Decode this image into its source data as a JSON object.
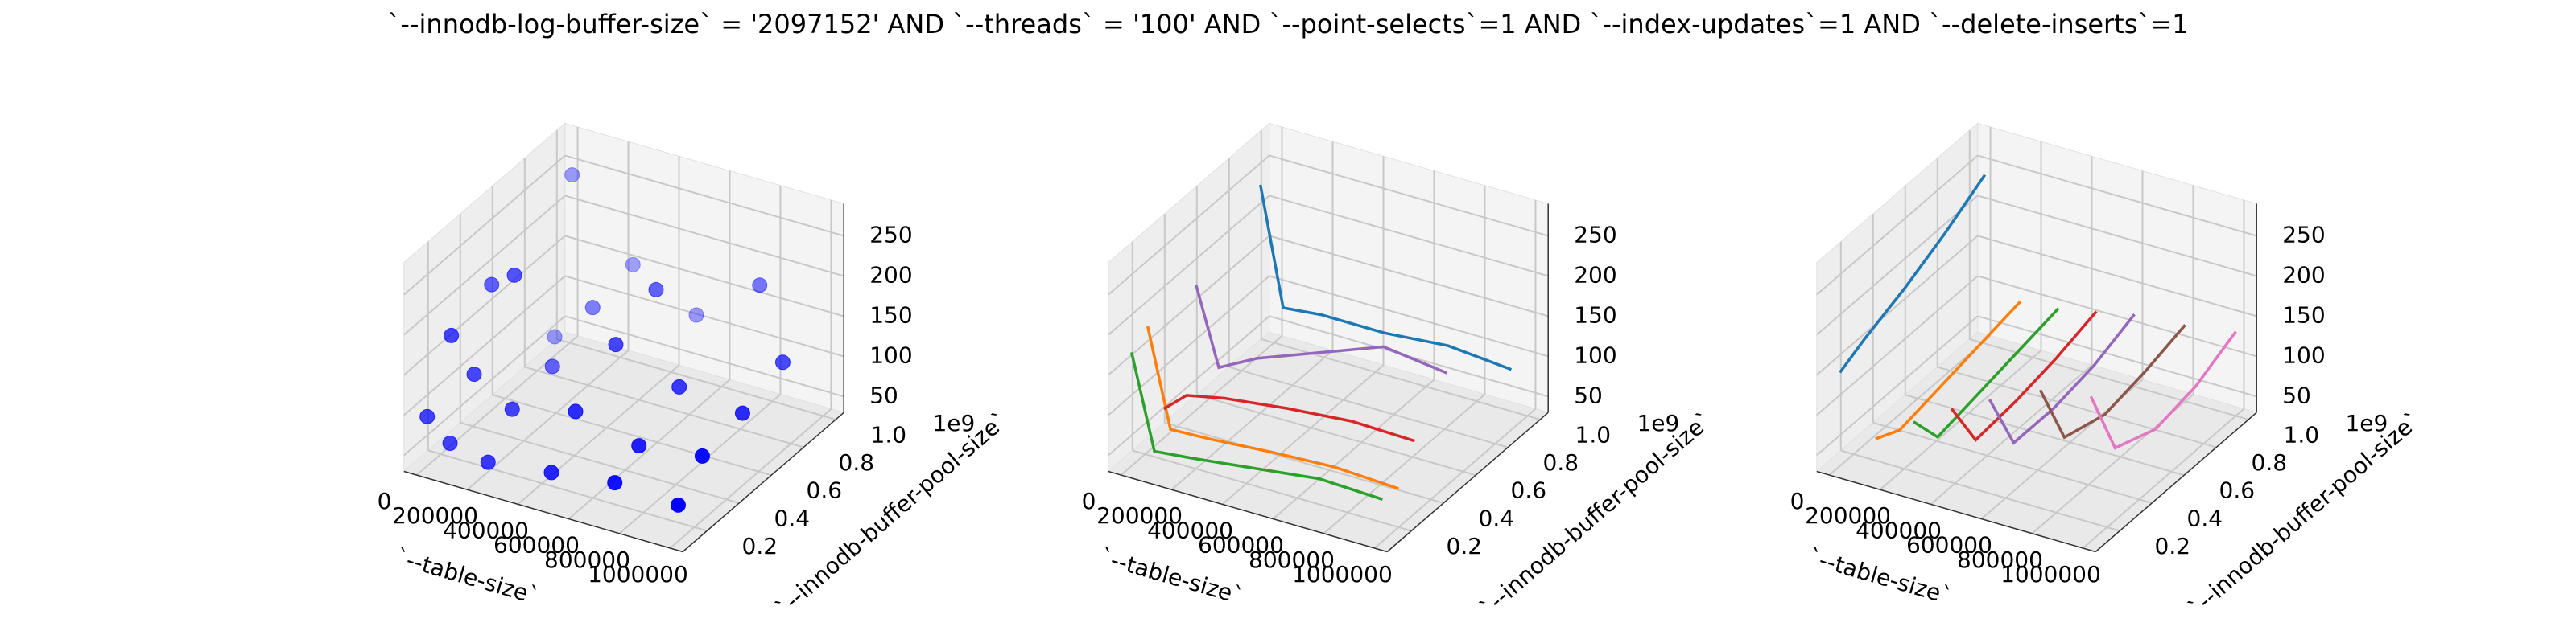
{
  "title": "`--innodb-log-buffer-size` = '2097152' AND `--threads` = '100'  AND `--point-selects`=1 AND `--index-updates`=1 AND `--delete-inserts`=1",
  "chart_data": [
    {
      "type": "scatter3d",
      "xlabel": "`--table-size`",
      "ylabel": "`--innodb-buffer-pool-size`",
      "y_offset_label": "1e9",
      "xlim": [
        -50000,
        1050000
      ],
      "ylim": [
        0.05,
        1.05
      ],
      "zlim": [
        30,
        290
      ],
      "xticks": [
        0,
        200000,
        400000,
        600000,
        800000,
        1000000
      ],
      "yticks": [
        0.2,
        0.4,
        0.6,
        0.8,
        {
          "value": 1,
          "label": "1.0"
        }
      ],
      "zticks": [
        50,
        100,
        150,
        200,
        250
      ],
      "grid": true,
      "color": "#0000ff",
      "x": [
        10000,
        10000,
        10000,
        10000,
        100000,
        100000,
        100000,
        100000,
        250000,
        250000,
        250000,
        250000,
        250000,
        500000,
        500000,
        500000,
        500000,
        500000,
        750000,
        750000,
        750000,
        750000,
        1000000,
        1000000,
        1000000,
        1000000
      ],
      "y": [
        0.1,
        0.25,
        0.5,
        1.0,
        0.1,
        0.25,
        0.5,
        0.75,
        0.1,
        0.25,
        0.5,
        0.75,
        1.0,
        0.1,
        0.25,
        0.5,
        0.75,
        1.0,
        0.1,
        0.25,
        0.5,
        1.0,
        0.1,
        0.25,
        0.5,
        0.75
      ],
      "z": [
        95,
        170,
        190,
        240,
        70,
        130,
        210,
        90,
        60,
        100,
        110,
        140,
        150,
        70,
        120,
        160,
        185,
        110,
        80,
        100,
        130,
        170,
        75,
        110,
        120,
        140
      ]
    },
    {
      "type": "line3d",
      "xlabel": "`--table-size`",
      "ylabel": "`--innodb-buffer-pool-size`",
      "y_offset_label": "1e9",
      "xlim": [
        -50000,
        1050000
      ],
      "ylim": [
        0.05,
        1.05
      ],
      "zlim": [
        30,
        290
      ],
      "xticks": [
        0,
        200000,
        400000,
        600000,
        800000,
        1000000
      ],
      "yticks": [
        0.2,
        0.4,
        0.6,
        0.8,
        {
          "value": 1,
          "label": "1.0"
        }
      ],
      "zticks": [
        50,
        100,
        150,
        200,
        250
      ],
      "grid": true,
      "series": [
        {
          "color": "#1f77b4",
          "x": [
            10000,
            100000,
            250000,
            500000,
            750000,
            1000000
          ],
          "y": [
            0.9,
            0.9,
            0.9,
            0.9,
            0.9,
            0.9
          ],
          "z": [
            245,
            100,
            105,
            105,
            112,
            105
          ]
        },
        {
          "color": "#ff7f0e",
          "x": [
            10000,
            100000,
            250000,
            500000,
            750000,
            1000000
          ],
          "y": [
            0.2,
            0.2,
            0.2,
            0.2,
            0.2,
            0.2
          ],
          "z": [
            190,
            70,
            72,
            78,
            82,
            78
          ]
        },
        {
          "color": "#2ca02c",
          "x": [
            10000,
            100000,
            250000,
            500000,
            750000,
            1000000
          ],
          "y": [
            0.1,
            0.1,
            0.1,
            0.1,
            0.1,
            0.1
          ],
          "z": [
            175,
            60,
            65,
            75,
            85,
            82
          ]
        },
        {
          "color": "#d62728",
          "x": [
            10000,
            100000,
            250000,
            500000,
            750000,
            1000000
          ],
          "y": [
            0.3,
            0.3,
            0.3,
            0.3,
            0.3,
            0.3
          ],
          "z": [
            70,
            95,
            105,
            115,
            122,
            120
          ]
        },
        {
          "color": "#9467bd",
          "x": [
            10000,
            100000,
            250000,
            500000,
            750000,
            1000000
          ],
          "y": [
            0.5,
            0.5,
            0.5,
            0.5,
            0.5,
            0.5
          ],
          "z": [
            190,
            95,
            120,
            150,
            180,
            170
          ]
        }
      ]
    },
    {
      "type": "line3d",
      "xlabel": "`--table-size`",
      "ylabel": "`--innodb-buffer-pool-size`",
      "y_offset_label": "1e9",
      "xlim": [
        -50000,
        1050000
      ],
      "ylim": [
        0.05,
        1.05
      ],
      "zlim": [
        30,
        290
      ],
      "xticks": [
        0,
        200000,
        400000,
        600000,
        800000,
        1000000
      ],
      "yticks": [
        0.2,
        0.4,
        0.6,
        0.8,
        {
          "value": 1,
          "label": "1.0"
        }
      ],
      "zticks": [
        50,
        100,
        150,
        200,
        250
      ],
      "grid": true,
      "series": [
        {
          "color": "#1f77b4",
          "x": [
            10000,
            10000,
            10000,
            10000,
            10000
          ],
          "y": [
            0.1,
            0.25,
            0.5,
            0.75,
            1.0
          ],
          "z": [
            150,
            165,
            185,
            210,
            240
          ]
        },
        {
          "color": "#ff7f0e",
          "x": [
            150000,
            150000,
            150000,
            150000,
            150000
          ],
          "y": [
            0.1,
            0.25,
            0.5,
            0.75,
            1.0
          ],
          "z": [
            80,
            65,
            75,
            85,
            95
          ]
        },
        {
          "color": "#2ca02c",
          "x": [
            300000,
            300000,
            300000,
            300000,
            300000
          ],
          "y": [
            0.1,
            0.25,
            0.5,
            0.75,
            1.0
          ],
          "z": [
            115,
            70,
            80,
            90,
            100
          ]
        },
        {
          "color": "#d62728",
          "x": [
            450000,
            450000,
            450000,
            450000,
            450000
          ],
          "y": [
            0.1,
            0.25,
            0.5,
            0.75,
            1.0
          ],
          "z": [
            145,
            80,
            85,
            95,
            110
          ]
        },
        {
          "color": "#9467bd",
          "x": [
            600000,
            600000,
            600000,
            600000,
            600000
          ],
          "y": [
            0.1,
            0.25,
            0.5,
            0.75,
            1.0
          ],
          "z": [
            170,
            90,
            90,
            100,
            120
          ]
        },
        {
          "color": "#8c564b",
          "x": [
            800000,
            800000,
            800000,
            800000,
            800000
          ],
          "y": [
            0.1,
            0.25,
            0.5,
            0.75,
            1.0
          ],
          "z": [
            200,
            115,
            100,
            110,
            125
          ]
        },
        {
          "color": "#e377c2",
          "x": [
            1000000,
            1000000,
            1000000,
            1000000,
            1000000
          ],
          "y": [
            0.1,
            0.25,
            0.5,
            0.75,
            1.0
          ],
          "z": [
            210,
            120,
            100,
            110,
            135
          ]
        }
      ]
    }
  ]
}
